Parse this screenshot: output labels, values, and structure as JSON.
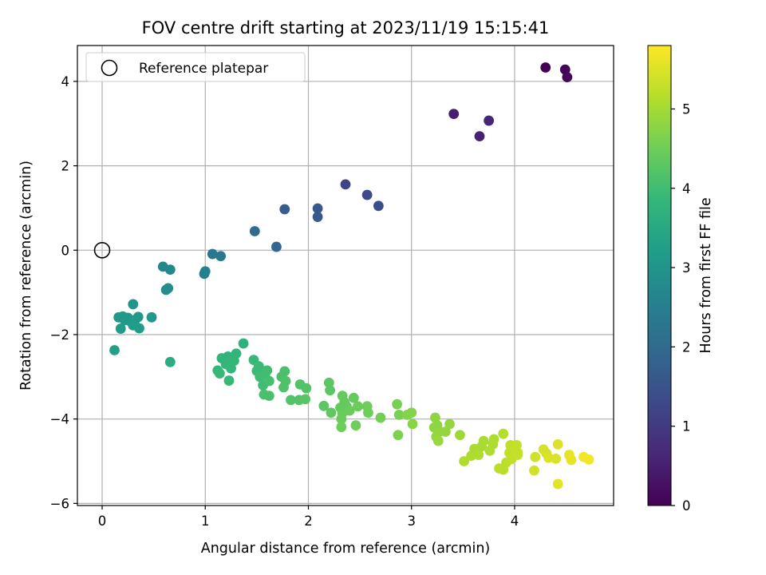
{
  "chart_data": {
    "type": "scatter",
    "title": "FOV centre drift starting at 2023/11/19 15:15:41",
    "xlabel": "Angular distance from reference (arcmin)",
    "ylabel": "Rotation from reference (arcmin)",
    "xlim": [
      -0.24,
      4.96
    ],
    "ylim": [
      -6.05,
      4.85
    ],
    "xticks": [
      0,
      1,
      2,
      3,
      4
    ],
    "yticks": [
      -6,
      -4,
      -2,
      0,
      2,
      4
    ],
    "grid": true,
    "legend": {
      "placement": "upper-left",
      "entries": [
        {
          "label": "Reference platepar",
          "marker": "open-circle"
        }
      ]
    },
    "reference_point": {
      "x": 0,
      "y": 0
    },
    "colorbar": {
      "label": "Hours from first FF file",
      "colormap": "viridis",
      "range": [
        0,
        5.8
      ],
      "ticks": [
        0,
        1,
        2,
        3,
        4,
        5
      ]
    },
    "colormap_stops": [
      "#440154",
      "#482878",
      "#3e4989",
      "#31688e",
      "#26828e",
      "#1f9e89",
      "#35b779",
      "#6ece58",
      "#b5de2b",
      "#fde725"
    ],
    "series": [
      {
        "points": [
          {
            "x": 4.3,
            "y": 4.33,
            "c": 0.0
          },
          {
            "x": 4.49,
            "y": 4.28,
            "c": 0.05
          },
          {
            "x": 4.51,
            "y": 4.1,
            "c": 0.1
          },
          {
            "x": 3.41,
            "y": 3.23,
            "c": 0.5
          },
          {
            "x": 3.75,
            "y": 3.07,
            "c": 0.6
          },
          {
            "x": 3.66,
            "y": 2.7,
            "c": 0.55
          },
          {
            "x": 2.36,
            "y": 1.56,
            "c": 1.2
          },
          {
            "x": 2.57,
            "y": 1.31,
            "c": 1.3
          },
          {
            "x": 2.68,
            "y": 1.05,
            "c": 1.4
          },
          {
            "x": 2.09,
            "y": 0.99,
            "c": 1.6
          },
          {
            "x": 2.09,
            "y": 0.79,
            "c": 1.65
          },
          {
            "x": 1.77,
            "y": 0.97,
            "c": 1.7
          },
          {
            "x": 1.48,
            "y": 0.45,
            "c": 2.0
          },
          {
            "x": 1.69,
            "y": 0.08,
            "c": 1.9
          },
          {
            "x": 1.07,
            "y": -0.09,
            "c": 2.3
          },
          {
            "x": 1.15,
            "y": -0.14,
            "c": 2.35
          },
          {
            "x": 1.0,
            "y": -0.5,
            "c": 2.5
          },
          {
            "x": 0.99,
            "y": -0.56,
            "c": 2.55
          },
          {
            "x": 0.59,
            "y": -0.39,
            "c": 2.7
          },
          {
            "x": 0.66,
            "y": -0.46,
            "c": 2.75
          },
          {
            "x": 0.62,
            "y": -0.94,
            "c": 2.8
          },
          {
            "x": 0.64,
            "y": -0.9,
            "c": 2.85
          },
          {
            "x": 0.3,
            "y": -1.28,
            "c": 3.0
          },
          {
            "x": 0.16,
            "y": -1.59,
            "c": 3.1
          },
          {
            "x": 0.2,
            "y": -1.57,
            "c": 3.1
          },
          {
            "x": 0.25,
            "y": -1.6,
            "c": 3.1
          },
          {
            "x": 0.28,
            "y": -1.7,
            "c": 3.15
          },
          {
            "x": 0.32,
            "y": -1.65,
            "c": 3.15
          },
          {
            "x": 0.35,
            "y": -1.58,
            "c": 3.1
          },
          {
            "x": 0.3,
            "y": -1.78,
            "c": 3.2
          },
          {
            "x": 0.36,
            "y": -1.85,
            "c": 3.2
          },
          {
            "x": 0.18,
            "y": -1.86,
            "c": 3.2
          },
          {
            "x": 0.48,
            "y": -1.59,
            "c": 3.1
          },
          {
            "x": 0.22,
            "y": -1.66,
            "c": 3.1
          },
          {
            "x": 0.12,
            "y": -2.37,
            "c": 3.3
          },
          {
            "x": 0.66,
            "y": -2.65,
            "c": 3.6
          },
          {
            "x": 1.37,
            "y": -2.21,
            "c": 3.7
          },
          {
            "x": 1.16,
            "y": -2.56,
            "c": 3.8
          },
          {
            "x": 1.22,
            "y": -2.52,
            "c": 3.8
          },
          {
            "x": 1.27,
            "y": -2.57,
            "c": 3.8
          },
          {
            "x": 1.3,
            "y": -2.45,
            "c": 3.8
          },
          {
            "x": 1.2,
            "y": -2.7,
            "c": 3.85
          },
          {
            "x": 1.25,
            "y": -2.8,
            "c": 3.85
          },
          {
            "x": 1.12,
            "y": -2.85,
            "c": 3.85
          },
          {
            "x": 1.14,
            "y": -2.92,
            "c": 3.9
          },
          {
            "x": 1.23,
            "y": -3.09,
            "c": 3.9
          },
          {
            "x": 1.28,
            "y": -2.62,
            "c": 3.85
          },
          {
            "x": 1.47,
            "y": -2.6,
            "c": 3.9
          },
          {
            "x": 1.5,
            "y": -2.86,
            "c": 3.95
          },
          {
            "x": 1.53,
            "y": -3.0,
            "c": 4.0
          },
          {
            "x": 1.56,
            "y": -3.2,
            "c": 4.0
          },
          {
            "x": 1.58,
            "y": -2.95,
            "c": 4.0
          },
          {
            "x": 1.6,
            "y": -2.85,
            "c": 4.0
          },
          {
            "x": 1.52,
            "y": -2.75,
            "c": 3.95
          },
          {
            "x": 1.62,
            "y": -3.1,
            "c": 4.05
          },
          {
            "x": 1.57,
            "y": -3.42,
            "c": 4.1
          },
          {
            "x": 1.62,
            "y": -3.45,
            "c": 4.1
          },
          {
            "x": 1.74,
            "y": -3.0,
            "c": 4.1
          },
          {
            "x": 1.77,
            "y": -2.87,
            "c": 4.1
          },
          {
            "x": 1.78,
            "y": -3.1,
            "c": 4.15
          },
          {
            "x": 1.76,
            "y": -3.25,
            "c": 4.15
          },
          {
            "x": 1.83,
            "y": -3.55,
            "c": 4.2
          },
          {
            "x": 1.91,
            "y": -3.55,
            "c": 4.2
          },
          {
            "x": 1.92,
            "y": -3.18,
            "c": 4.2
          },
          {
            "x": 1.98,
            "y": -3.27,
            "c": 4.2
          },
          {
            "x": 1.97,
            "y": -3.53,
            "c": 4.25
          },
          {
            "x": 2.15,
            "y": -3.69,
            "c": 4.3
          },
          {
            "x": 2.2,
            "y": -3.14,
            "c": 4.3
          },
          {
            "x": 2.21,
            "y": -3.32,
            "c": 4.3
          },
          {
            "x": 2.22,
            "y": -3.85,
            "c": 4.35
          },
          {
            "x": 2.31,
            "y": -3.73,
            "c": 4.4
          },
          {
            "x": 2.33,
            "y": -3.45,
            "c": 4.4
          },
          {
            "x": 2.35,
            "y": -3.6,
            "c": 4.4
          },
          {
            "x": 2.33,
            "y": -3.86,
            "c": 4.45
          },
          {
            "x": 2.32,
            "y": -4.0,
            "c": 4.45
          },
          {
            "x": 2.37,
            "y": -3.7,
            "c": 4.4
          },
          {
            "x": 2.4,
            "y": -3.8,
            "c": 4.45
          },
          {
            "x": 2.44,
            "y": -3.5,
            "c": 4.4
          },
          {
            "x": 2.32,
            "y": -4.19,
            "c": 4.5
          },
          {
            "x": 2.46,
            "y": -4.15,
            "c": 4.5
          },
          {
            "x": 2.48,
            "y": -3.7,
            "c": 4.45
          },
          {
            "x": 2.57,
            "y": -3.7,
            "c": 4.5
          },
          {
            "x": 2.58,
            "y": -3.85,
            "c": 4.5
          },
          {
            "x": 2.7,
            "y": -3.97,
            "c": 4.55
          },
          {
            "x": 2.86,
            "y": -3.65,
            "c": 4.6
          },
          {
            "x": 2.88,
            "y": -3.9,
            "c": 4.6
          },
          {
            "x": 2.87,
            "y": -4.38,
            "c": 4.65
          },
          {
            "x": 2.96,
            "y": -3.9,
            "c": 4.7
          },
          {
            "x": 3.0,
            "y": -3.85,
            "c": 4.7
          },
          {
            "x": 3.01,
            "y": -4.12,
            "c": 4.75
          },
          {
            "x": 3.23,
            "y": -3.97,
            "c": 4.8
          },
          {
            "x": 3.25,
            "y": -4.15,
            "c": 4.8
          },
          {
            "x": 3.22,
            "y": -4.2,
            "c": 4.8
          },
          {
            "x": 3.27,
            "y": -4.3,
            "c": 4.85
          },
          {
            "x": 3.24,
            "y": -4.42,
            "c": 4.85
          },
          {
            "x": 3.26,
            "y": -4.52,
            "c": 4.9
          },
          {
            "x": 3.33,
            "y": -4.3,
            "c": 4.85
          },
          {
            "x": 3.37,
            "y": -4.12,
            "c": 4.85
          },
          {
            "x": 3.47,
            "y": -4.38,
            "c": 4.95
          },
          {
            "x": 3.51,
            "y": -5.0,
            "c": 5.1
          },
          {
            "x": 3.58,
            "y": -4.87,
            "c": 5.1
          },
          {
            "x": 3.61,
            "y": -4.71,
            "c": 5.05
          },
          {
            "x": 3.65,
            "y": -4.85,
            "c": 5.1
          },
          {
            "x": 3.68,
            "y": -4.65,
            "c": 5.05
          },
          {
            "x": 3.7,
            "y": -4.52,
            "c": 5.05
          },
          {
            "x": 3.76,
            "y": -4.75,
            "c": 5.1
          },
          {
            "x": 3.79,
            "y": -4.6,
            "c": 5.1
          },
          {
            "x": 3.8,
            "y": -4.48,
            "c": 5.1
          },
          {
            "x": 3.85,
            "y": -5.17,
            "c": 5.2
          },
          {
            "x": 3.89,
            "y": -5.2,
            "c": 5.2
          },
          {
            "x": 3.89,
            "y": -4.35,
            "c": 5.15
          },
          {
            "x": 3.92,
            "y": -5.03,
            "c": 5.2
          },
          {
            "x": 3.95,
            "y": -4.8,
            "c": 5.25
          },
          {
            "x": 3.96,
            "y": -4.62,
            "c": 5.25
          },
          {
            "x": 3.97,
            "y": -4.95,
            "c": 5.25
          },
          {
            "x": 4.0,
            "y": -4.7,
            "c": 5.3
          },
          {
            "x": 4.02,
            "y": -4.62,
            "c": 5.3
          },
          {
            "x": 4.03,
            "y": -4.8,
            "c": 5.3
          },
          {
            "x": 4.03,
            "y": -4.85,
            "c": 5.3
          },
          {
            "x": 4.19,
            "y": -5.22,
            "c": 5.4
          },
          {
            "x": 4.2,
            "y": -4.9,
            "c": 5.4
          },
          {
            "x": 4.28,
            "y": -4.72,
            "c": 5.45
          },
          {
            "x": 4.31,
            "y": -4.82,
            "c": 5.45
          },
          {
            "x": 4.33,
            "y": -4.92,
            "c": 5.5
          },
          {
            "x": 4.4,
            "y": -4.94,
            "c": 5.5
          },
          {
            "x": 4.42,
            "y": -4.6,
            "c": 5.5
          },
          {
            "x": 4.42,
            "y": -5.54,
            "c": 5.55
          },
          {
            "x": 4.53,
            "y": -4.85,
            "c": 5.6
          },
          {
            "x": 4.55,
            "y": -4.97,
            "c": 5.6
          },
          {
            "x": 4.67,
            "y": -4.9,
            "c": 5.7
          },
          {
            "x": 4.72,
            "y": -4.96,
            "c": 5.7
          }
        ]
      }
    ]
  }
}
